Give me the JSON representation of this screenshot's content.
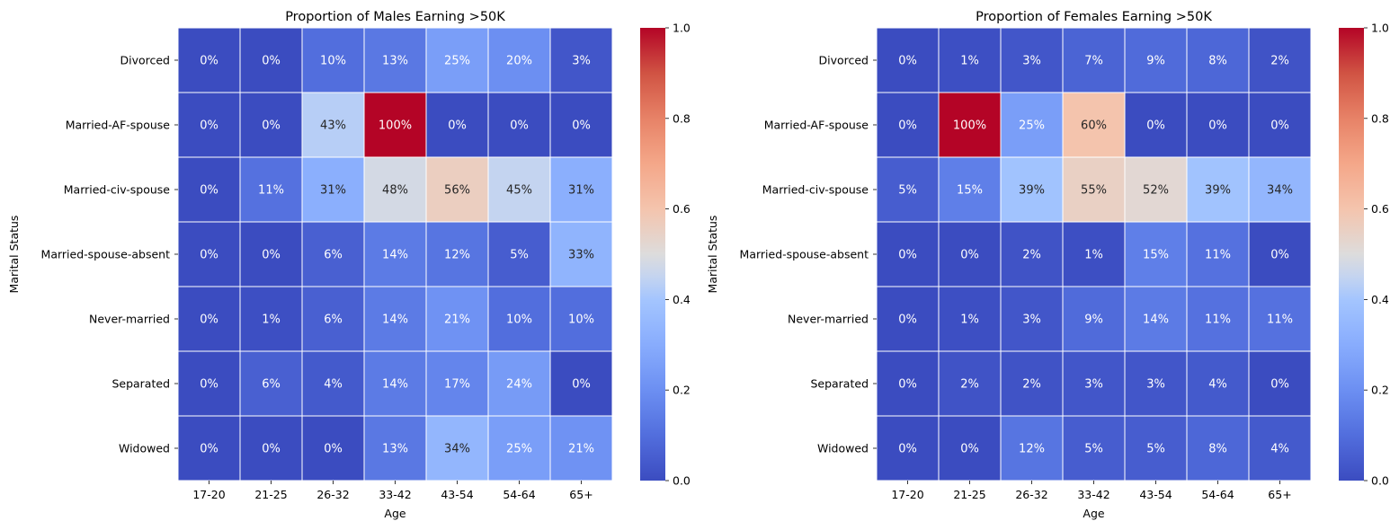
{
  "chart_data": [
    {
      "type": "heatmap",
      "title": "Proportion of Males Earning >50K",
      "xlabel": "Age",
      "ylabel": "Marital Status",
      "x_categories": [
        "17-20",
        "21-25",
        "26-32",
        "33-42",
        "43-54",
        "54-64",
        "65+"
      ],
      "y_categories": [
        "Divorced",
        "Married-AF-spouse",
        "Married-civ-spouse",
        "Married-spouse-absent",
        "Never-married",
        "Separated",
        "Widowed"
      ],
      "values": [
        [
          0.0,
          0.0,
          0.1,
          0.13,
          0.25,
          0.2,
          0.03
        ],
        [
          0.0,
          0.0,
          0.43,
          1.0,
          0.0,
          0.0,
          0.0
        ],
        [
          0.0,
          0.11,
          0.31,
          0.48,
          0.56,
          0.45,
          0.31
        ],
        [
          0.0,
          0.0,
          0.06,
          0.14,
          0.12,
          0.05,
          0.33
        ],
        [
          0.0,
          0.01,
          0.06,
          0.14,
          0.21,
          0.1,
          0.1
        ],
        [
          0.0,
          0.06,
          0.04,
          0.14,
          0.17,
          0.24,
          0.0
        ],
        [
          0.0,
          0.0,
          0.0,
          0.13,
          0.34,
          0.25,
          0.21
        ]
      ],
      "annotations": [
        [
          "0%",
          "0%",
          "10%",
          "13%",
          "25%",
          "20%",
          "3%"
        ],
        [
          "0%",
          "0%",
          "43%",
          "100%",
          "0%",
          "0%",
          "0%"
        ],
        [
          "0%",
          "11%",
          "31%",
          "48%",
          "56%",
          "45%",
          "31%"
        ],
        [
          "0%",
          "0%",
          "6%",
          "14%",
          "12%",
          "5%",
          "33%"
        ],
        [
          "0%",
          "1%",
          "6%",
          "14%",
          "21%",
          "10%",
          "10%"
        ],
        [
          "0%",
          "6%",
          "4%",
          "14%",
          "17%",
          "24%",
          "0%"
        ],
        [
          "0%",
          "0%",
          "0%",
          "13%",
          "34%",
          "25%",
          "21%"
        ]
      ],
      "colormap": "coolwarm",
      "vmin": 0,
      "vmax": 1,
      "colorbar_ticks": [
        "0.0",
        "0.2",
        "0.4",
        "0.6",
        "0.8",
        "1.0"
      ]
    },
    {
      "type": "heatmap",
      "title": "Proportion of Females Earning >50K",
      "xlabel": "Age",
      "ylabel": "Marital Status",
      "x_categories": [
        "17-20",
        "21-25",
        "26-32",
        "33-42",
        "43-54",
        "54-64",
        "65+"
      ],
      "y_categories": [
        "Divorced",
        "Married-AF-spouse",
        "Married-civ-spouse",
        "Married-spouse-absent",
        "Never-married",
        "Separated",
        "Widowed"
      ],
      "values": [
        [
          0.0,
          0.01,
          0.03,
          0.07,
          0.09,
          0.08,
          0.02
        ],
        [
          0.0,
          1.0,
          0.25,
          0.6,
          0.0,
          0.0,
          0.0
        ],
        [
          0.05,
          0.15,
          0.39,
          0.55,
          0.52,
          0.39,
          0.34
        ],
        [
          0.0,
          0.0,
          0.02,
          0.01,
          0.15,
          0.11,
          0.0
        ],
        [
          0.0,
          0.01,
          0.03,
          0.09,
          0.14,
          0.11,
          0.11
        ],
        [
          0.0,
          0.02,
          0.02,
          0.03,
          0.03,
          0.04,
          0.0
        ],
        [
          0.0,
          0.0,
          0.12,
          0.05,
          0.05,
          0.08,
          0.04
        ]
      ],
      "annotations": [
        [
          "0%",
          "1%",
          "3%",
          "7%",
          "9%",
          "8%",
          "2%"
        ],
        [
          "0%",
          "100%",
          "25%",
          "60%",
          "0%",
          "0%",
          "0%"
        ],
        [
          "5%",
          "15%",
          "39%",
          "55%",
          "52%",
          "39%",
          "34%"
        ],
        [
          "0%",
          "0%",
          "2%",
          "1%",
          "15%",
          "11%",
          "0%"
        ],
        [
          "0%",
          "1%",
          "3%",
          "9%",
          "14%",
          "11%",
          "11%"
        ],
        [
          "0%",
          "2%",
          "2%",
          "3%",
          "3%",
          "4%",
          "0%"
        ],
        [
          "0%",
          "0%",
          "12%",
          "5%",
          "5%",
          "8%",
          "4%"
        ]
      ],
      "colormap": "coolwarm",
      "vmin": 0,
      "vmax": 1,
      "colorbar_ticks": [
        "0.0",
        "0.2",
        "0.4",
        "0.6",
        "0.8",
        "1.0"
      ]
    }
  ]
}
